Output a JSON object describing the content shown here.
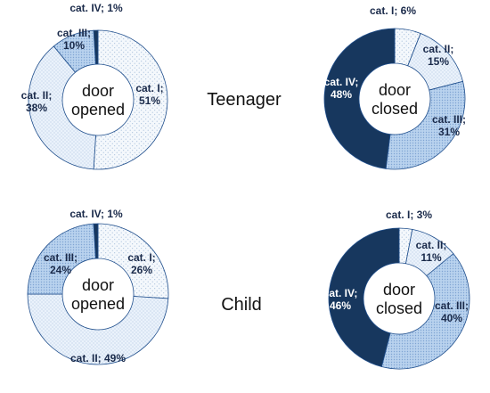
{
  "chart_data": [
    {
      "type": "pie",
      "group": "Teenager",
      "center_label": [
        "door",
        "opened"
      ],
      "slices": [
        {
          "label": "cat. I;",
          "value": 51,
          "text": "51%",
          "color": "#f4f8fc"
        },
        {
          "label": "cat. II;",
          "value": 38,
          "text": "38%",
          "color": "#eaf2fb"
        },
        {
          "label": "cat. III;",
          "value": 10,
          "text": "10%",
          "color": "#b9d2ee"
        },
        {
          "label": "cat. IV;",
          "value": 1,
          "text": "1%",
          "color": "#17375e"
        }
      ]
    },
    {
      "type": "pie",
      "group": "Teenager",
      "center_label": [
        "door",
        "closed"
      ],
      "slices": [
        {
          "label": "cat. I;",
          "value": 6,
          "text": "6%",
          "color": "#f4f8fc"
        },
        {
          "label": "cat. II;",
          "value": 15,
          "text": "15%",
          "color": "#eaf2fb"
        },
        {
          "label": "cat. III;",
          "value": 31,
          "text": "31%",
          "color": "#b9d2ee"
        },
        {
          "label": "cat. IV;",
          "value": 48,
          "text": "48%",
          "color": "#17375e"
        }
      ]
    },
    {
      "type": "pie",
      "group": "Child",
      "center_label": [
        "door",
        "opened"
      ],
      "slices": [
        {
          "label": "cat. I;",
          "value": 26,
          "text": "26%",
          "color": "#f4f8fc"
        },
        {
          "label": "cat. II;",
          "value": 49,
          "text": "49%",
          "color": "#eaf2fb"
        },
        {
          "label": "cat. III;",
          "value": 24,
          "text": "24%",
          "color": "#b9d2ee"
        },
        {
          "label": "cat. IV;",
          "value": 1,
          "text": "1%",
          "color": "#17375e"
        }
      ]
    },
    {
      "type": "pie",
      "group": "Child",
      "center_label": [
        "door",
        "closed"
      ],
      "slices": [
        {
          "label": "cat. I;",
          "value": 3,
          "text": "3%",
          "color": "#f4f8fc"
        },
        {
          "label": "cat. II;",
          "value": 11,
          "text": "11%",
          "color": "#eaf2fb"
        },
        {
          "label": "cat. III;",
          "value": 40,
          "text": "40%",
          "color": "#b9d2ee"
        },
        {
          "label": "cat. IV;",
          "value": 46,
          "text": "46%",
          "color": "#17375e"
        }
      ]
    }
  ],
  "groups": [
    "Teenager",
    "Child"
  ]
}
